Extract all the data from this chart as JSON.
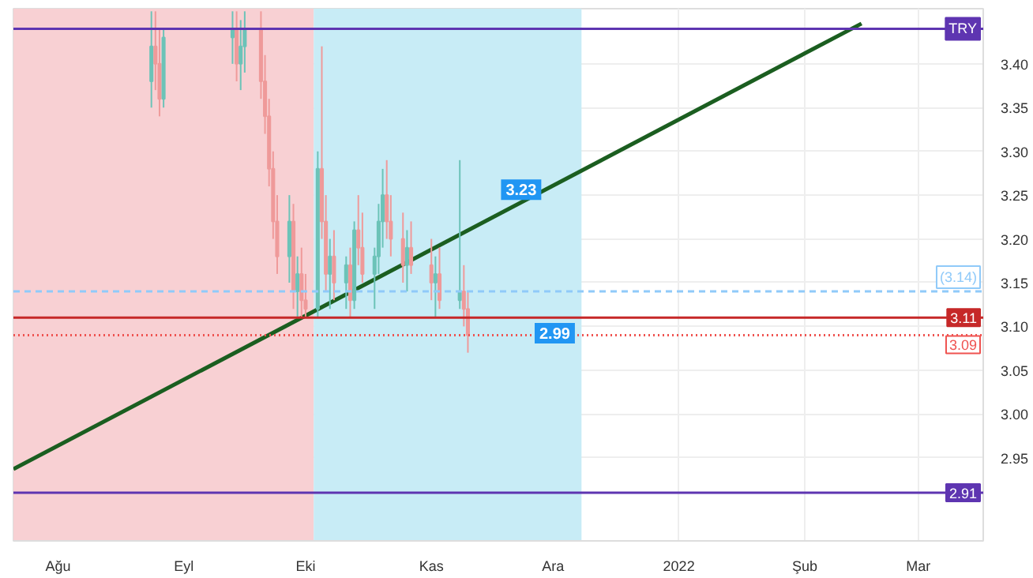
{
  "chart_data": {
    "type": "candlestick",
    "x": [
      "2021-08-24",
      "2021-08-25",
      "2021-08-26",
      "2021-08-27",
      "2021-09-13",
      "2021-09-14",
      "2021-09-15",
      "2021-09-16",
      "2021-09-20",
      "2021-09-21",
      "2021-09-22",
      "2021-09-23",
      "2021-09-24",
      "2021-09-27",
      "2021-09-28",
      "2021-09-29",
      "2021-09-30",
      "2021-10-01",
      "2021-10-04",
      "2021-10-05",
      "2021-10-06",
      "2021-10-07",
      "2021-10-08",
      "2021-10-11",
      "2021-10-12",
      "2021-10-13",
      "2021-10-14",
      "2021-10-15",
      "2021-10-18",
      "2021-10-19",
      "2021-10-20",
      "2021-10-21",
      "2021-10-22",
      "2021-10-25",
      "2021-10-26",
      "2021-10-27",
      "2021-11-01",
      "2021-11-02",
      "2021-11-03",
      "2021-11-08",
      "2021-11-09",
      "2021-11-10"
    ],
    "ohlc": [
      [
        3.38,
        3.46,
        3.35,
        3.42
      ],
      [
        3.42,
        3.46,
        3.37,
        3.4
      ],
      [
        3.4,
        3.44,
        3.34,
        3.36
      ],
      [
        3.36,
        3.44,
        3.35,
        3.43
      ],
      [
        3.43,
        3.46,
        3.4,
        3.44
      ],
      [
        3.44,
        3.46,
        3.38,
        3.4
      ],
      [
        3.4,
        3.45,
        3.37,
        3.42
      ],
      [
        3.42,
        3.46,
        3.39,
        3.44
      ],
      [
        3.44,
        3.46,
        3.36,
        3.38
      ],
      [
        3.38,
        3.41,
        3.32,
        3.34
      ],
      [
        3.34,
        3.36,
        3.26,
        3.28
      ],
      [
        3.28,
        3.3,
        3.2,
        3.22
      ],
      [
        3.22,
        3.25,
        3.16,
        3.18
      ],
      [
        3.18,
        3.25,
        3.15,
        3.22
      ],
      [
        3.22,
        3.24,
        3.12,
        3.14
      ],
      [
        3.14,
        3.18,
        3.11,
        3.16
      ],
      [
        3.16,
        3.19,
        3.11,
        3.13
      ],
      [
        3.13,
        3.16,
        3.11,
        3.12
      ],
      [
        3.12,
        3.3,
        3.11,
        3.28
      ],
      [
        3.28,
        3.42,
        3.2,
        3.22
      ],
      [
        3.22,
        3.25,
        3.14,
        3.16
      ],
      [
        3.16,
        3.2,
        3.12,
        3.18
      ],
      [
        3.18,
        3.21,
        3.13,
        3.15
      ],
      [
        3.15,
        3.18,
        3.12,
        3.17
      ],
      [
        3.17,
        3.19,
        3.11,
        3.13
      ],
      [
        3.13,
        3.22,
        3.12,
        3.21
      ],
      [
        3.21,
        3.25,
        3.17,
        3.19
      ],
      [
        3.19,
        3.23,
        3.15,
        3.16
      ],
      [
        3.16,
        3.19,
        3.12,
        3.18
      ],
      [
        3.18,
        3.24,
        3.16,
        3.22
      ],
      [
        3.22,
        3.28,
        3.19,
        3.25
      ],
      [
        3.25,
        3.29,
        3.2,
        3.22
      ],
      [
        3.22,
        3.25,
        3.18,
        3.2
      ],
      [
        3.2,
        3.23,
        3.15,
        3.17
      ],
      [
        3.17,
        3.21,
        3.14,
        3.19
      ],
      [
        3.19,
        3.22,
        3.16,
        3.17
      ],
      [
        3.17,
        3.2,
        3.13,
        3.15
      ],
      [
        3.15,
        3.18,
        3.11,
        3.16
      ],
      [
        3.16,
        3.19,
        3.12,
        3.13
      ],
      [
        3.13,
        3.29,
        3.12,
        3.14
      ],
      [
        3.14,
        3.17,
        3.1,
        3.12
      ],
      [
        3.12,
        3.14,
        3.07,
        3.09
      ]
    ],
    "series": [
      {
        "type": "line",
        "color": "#1b5e20",
        "x": [
          "2021-07-21",
          "2022-02-15"
        ],
        "values": [
          2.937,
          3.446
        ]
      }
    ],
    "xlim": [
      "2021-07-21",
      "2022-03-17"
    ],
    "xticks": [
      {
        "value": "2021-08-01",
        "label": "Ağu"
      },
      {
        "value": "2021-09-01",
        "label": "Eyl"
      },
      {
        "value": "2021-10-01",
        "label": "Eki"
      },
      {
        "value": "2021-11-01",
        "label": "Kas"
      },
      {
        "value": "2021-12-01",
        "label": "Ara"
      },
      {
        "value": "2022-01-01",
        "label": "2022"
      },
      {
        "value": "2022-02-01",
        "label": "Şub"
      },
      {
        "value": "2022-03-01",
        "label": "Mar"
      }
    ],
    "ylim": [
      2.855,
      3.463
    ],
    "yticks": [
      2.95,
      {
        "value": 3.0,
        "label": "3.00"
      },
      3.05,
      {
        "value": 3.1,
        "label": "3.10"
      },
      3.15,
      {
        "value": 3.2,
        "label": "3.20"
      },
      3.25,
      {
        "value": 3.3,
        "label": "3.30"
      },
      3.35,
      {
        "value": 3.4,
        "label": "3.40"
      }
    ],
    "ref_lines": [
      {
        "axis": "y",
        "value": 3.44,
        "label": "TRY",
        "color": "#5e35b1"
      },
      {
        "axis": "y",
        "value": 3.14,
        "label": "(3.14)",
        "color": "#90caf9",
        "line_style": "dashed"
      },
      {
        "axis": "y",
        "value": 3.11,
        "label": "3.11",
        "color": "#c62828"
      },
      {
        "axis": "y",
        "value": 3.09,
        "label": "3.09",
        "color": "#ef5350",
        "line_style": "dotted"
      },
      {
        "axis": "y",
        "value": 2.91,
        "label": "2.91",
        "color": "#5e35b1"
      }
    ],
    "bands": [
      {
        "axis": "x",
        "from": "2021-07-21",
        "to": "2021-10-03",
        "color": "#f8d0d3"
      },
      {
        "axis": "x",
        "from": "2021-10-03",
        "to": "2021-12-08",
        "color": "#c8ecf6"
      }
    ],
    "annotations": [
      {
        "text": "3.23",
        "x": "2021-11-17",
        "y": 3.23
      },
      "2.99"
    ],
    "grid": true
  }
}
